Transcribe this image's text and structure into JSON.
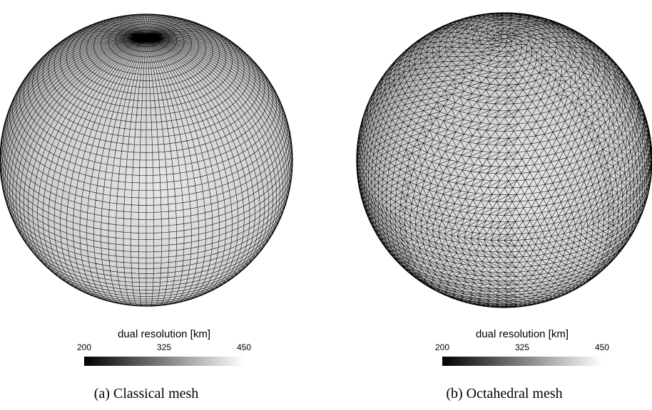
{
  "figures": [
    {
      "colorbar": {
        "label": "dual resolution [km]",
        "ticks": [
          200,
          325,
          450
        ]
      },
      "caption": "(a) Classical mesh"
    },
    {
      "colorbar": {
        "label": "dual resolution [km]",
        "ticks": [
          200,
          325,
          450
        ]
      },
      "caption": "(b) Octahedral mesh"
    }
  ]
}
